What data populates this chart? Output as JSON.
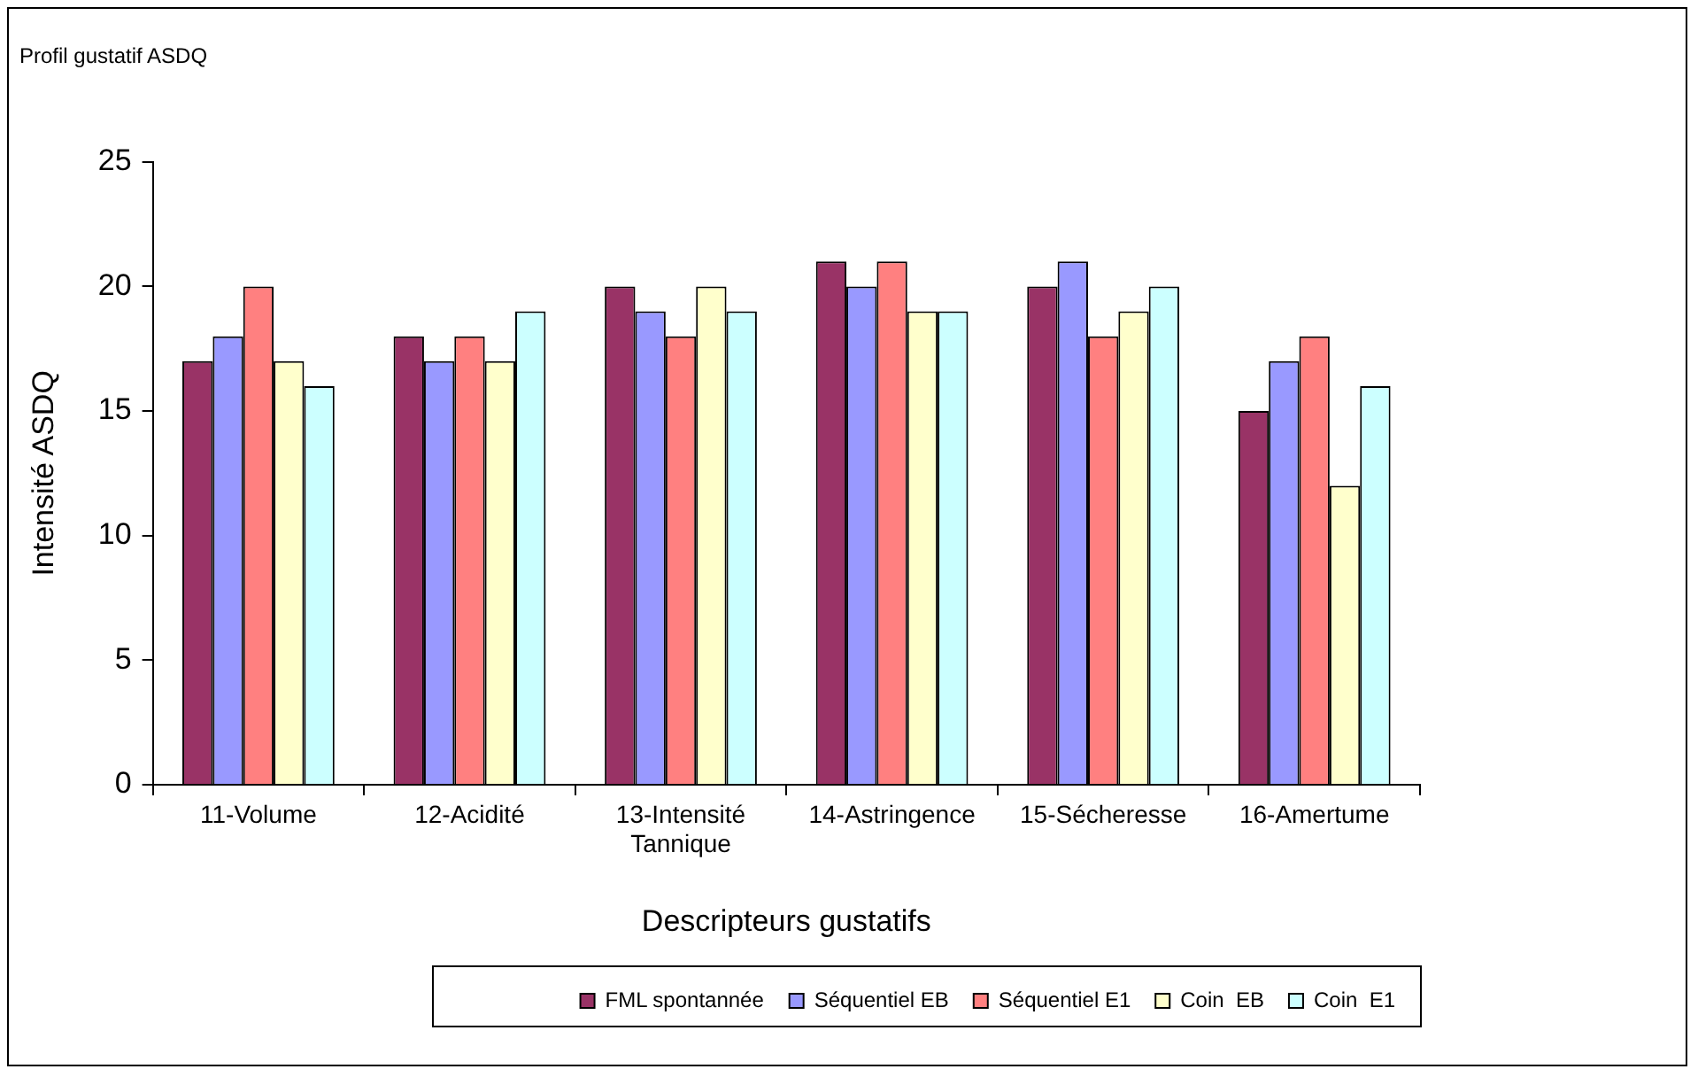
{
  "chart_data": {
    "type": "bar",
    "title": "Profil gustatif ASDQ",
    "xlabel": "Descripteurs gustatifs",
    "ylabel": "Intensité ASDQ",
    "categories": [
      "11-Volume",
      "12-Acidité",
      "13-Intensité Tannique",
      "14-Astringence",
      "15-Sécheresse",
      "16-Amertume"
    ],
    "series": [
      {
        "name": "FML spontannée",
        "color": "#993366",
        "values": [
          17,
          18,
          20,
          21,
          20,
          15
        ]
      },
      {
        "name": "Séquentiel EB",
        "color": "#9999ff",
        "values": [
          18,
          17,
          19,
          20,
          21,
          17
        ]
      },
      {
        "name": "Séquentiel E1",
        "color": "#ff8080",
        "values": [
          20,
          18,
          18,
          21,
          18,
          18
        ]
      },
      {
        "name": "Coin  EB",
        "color": "#ffffcc",
        "values": [
          17,
          17,
          20,
          19,
          19,
          12
        ]
      },
      {
        "name": "Coin  E1",
        "color": "#ccffff",
        "values": [
          16,
          19,
          19,
          19,
          20,
          16
        ]
      }
    ],
    "ylim": [
      0,
      25
    ],
    "yticks": [
      0,
      5,
      10,
      15,
      20,
      25
    ],
    "grid": false,
    "legend": "bottom"
  }
}
